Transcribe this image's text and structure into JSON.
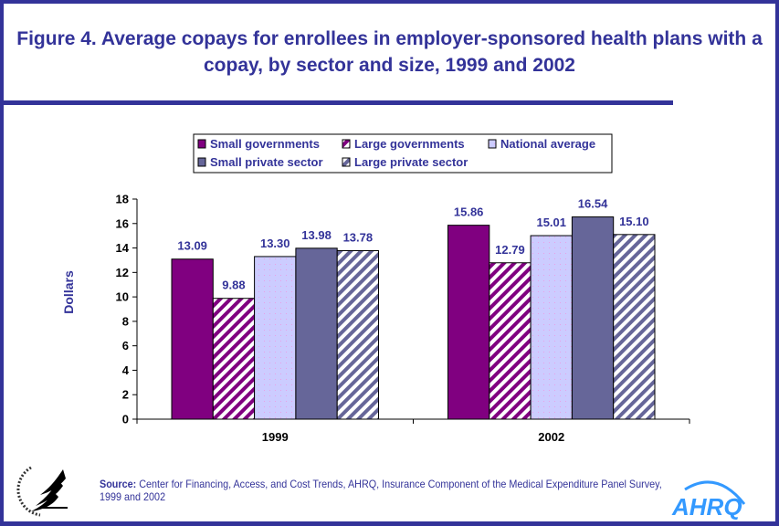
{
  "title": "Figure 4. Average copays for enrollees in employer-sponsored health plans with a copay, by sector and size, 1999 and 2002",
  "source_label": "Source:",
  "source_text": "Center for Financing, Access, and Cost Trends, AHRQ, Insurance Component of the Medical Expenditure Panel Survey, 1999 and  2002",
  "logos": {
    "hhs": "Department of Health & Human Services USA",
    "ahrq": "AHRQ"
  },
  "colors": {
    "frame": "#333399",
    "small_gov": "#800080",
    "large_gov": "#800080",
    "national": "#ccccff",
    "small_private": "#666699",
    "large_private": "#666699"
  },
  "chart_data": {
    "type": "bar",
    "title": "Figure 4. Average copays for enrollees in employer-sponsored health plans with a copay, by sector and size, 1999 and 2002",
    "xlabel": "",
    "ylabel": "Dollars",
    "ylim": [
      0,
      18
    ],
    "yticks": [
      "0",
      "2",
      "4",
      "6",
      "8",
      "10",
      "12",
      "14",
      "16",
      "18"
    ],
    "categories": [
      "1999",
      "2002"
    ],
    "legend_position": "top",
    "grid": false,
    "series": [
      {
        "name": "Small governments",
        "values": [
          13.09,
          15.86
        ],
        "labels": [
          "13.09",
          "15.86"
        ],
        "fill": "#800080",
        "pattern": "solid"
      },
      {
        "name": "Large governments",
        "values": [
          9.88,
          12.79
        ],
        "labels": [
          "9.88",
          "12.79"
        ],
        "fill": "#800080",
        "pattern": "hatch"
      },
      {
        "name": "National average",
        "values": [
          13.3,
          15.01
        ],
        "labels": [
          "13.30",
          "15.01"
        ],
        "fill": "#ccccff",
        "pattern": "dots"
      },
      {
        "name": "Small private sector",
        "values": [
          13.98,
          16.54
        ],
        "labels": [
          "13.98",
          "16.54"
        ],
        "fill": "#666699",
        "pattern": "solid"
      },
      {
        "name": "Large private sector",
        "values": [
          13.78,
          15.1
        ],
        "labels": [
          "13.78",
          "15.10"
        ],
        "fill": "#666699",
        "pattern": "hatch"
      }
    ]
  }
}
